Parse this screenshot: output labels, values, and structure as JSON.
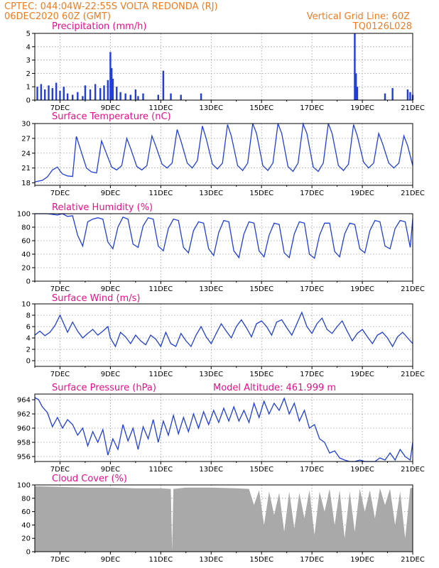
{
  "header": {
    "line1": "CPTEC:   044:04W-22:55S   VOLTA REDONDA (RJ)",
    "line2": "06DEC2020 60Z (GMT)",
    "grid_note": "Vertical Grid Line: 60Z",
    "code": "TQ0126L028"
  },
  "colors": {
    "header": "#f07c22",
    "title": "#e8108a",
    "series": "#1f3fd8",
    "cloud": "#a9a9a9"
  },
  "chart_data": [
    {
      "type": "bar",
      "title": "Precipitation (mm/h)",
      "ylim": [
        0,
        5
      ],
      "yticks": [
        0,
        1,
        2,
        3,
        4,
        5
      ],
      "xlabels": [
        "7DEC",
        "9DEC",
        "11DEC",
        "13DEC",
        "15DEC",
        "17DEC",
        "19DEC",
        "21DEC"
      ],
      "grid": true,
      "x": [
        6.1,
        6.25,
        6.4,
        6.55,
        6.7,
        6.85,
        7.0,
        7.15,
        7.3,
        7.5,
        7.7,
        7.9,
        8.0,
        8.2,
        8.4,
        8.6,
        8.75,
        8.9,
        9.0,
        9.05,
        9.1,
        9.25,
        9.4,
        9.6,
        9.8,
        10.0,
        10.1,
        10.3,
        10.9,
        11.1,
        11.4,
        11.8,
        12.6,
        18.7,
        18.75,
        18.8,
        19.9,
        20.2,
        20.8,
        20.9,
        21.0
      ],
      "values": [
        1.0,
        1.2,
        0.8,
        1.1,
        0.9,
        1.3,
        0.7,
        1.0,
        0.5,
        0.4,
        0.6,
        0.3,
        1.1,
        0.8,
        1.2,
        0.9,
        1.1,
        1.5,
        3.6,
        2.4,
        1.6,
        1.0,
        0.6,
        0.5,
        0.4,
        0.8,
        0.3,
        0.5,
        0.4,
        2.2,
        0.5,
        0.4,
        0.5,
        5.0,
        2.0,
        1.0,
        0.5,
        0.9,
        0.8,
        0.6,
        0.4
      ]
    },
    {
      "type": "line",
      "title": "Surface Temperature (nC)",
      "ylim": [
        17.5,
        30
      ],
      "yticks": [
        18,
        21,
        24,
        27,
        30
      ],
      "xlabels": [
        "7DEC",
        "9DEC",
        "11DEC",
        "13DEC",
        "15DEC",
        "17DEC",
        "19DEC",
        "21DEC"
      ],
      "grid": true,
      "x": [
        6.0,
        6.3,
        6.5,
        6.7,
        6.9,
        7.0,
        7.1,
        7.3,
        7.5,
        7.65,
        7.8,
        8.05,
        8.25,
        8.45,
        8.65,
        8.8,
        9.05,
        9.25,
        9.45,
        9.65,
        9.8,
        10.05,
        10.25,
        10.45,
        10.65,
        10.8,
        11.05,
        11.25,
        11.45,
        11.65,
        11.8,
        12.05,
        12.25,
        12.45,
        12.65,
        12.8,
        13.05,
        13.25,
        13.45,
        13.65,
        13.8,
        14.05,
        14.25,
        14.45,
        14.65,
        14.8,
        15.05,
        15.25,
        15.45,
        15.65,
        15.8,
        16.05,
        16.25,
        16.45,
        16.65,
        16.8,
        17.05,
        17.25,
        17.45,
        17.65,
        17.8,
        18.05,
        18.25,
        18.45,
        18.65,
        18.8,
        19.05,
        19.25,
        19.45,
        19.65,
        19.8,
        20.05,
        20.25,
        20.45,
        20.65,
        20.8,
        21.0
      ],
      "values": [
        18.2,
        18.5,
        19.2,
        20.6,
        21.2,
        20.4,
        19.8,
        19.4,
        19.3,
        27.4,
        25.0,
        21.0,
        20.2,
        20.0,
        26.5,
        24.5,
        21.2,
        20.6,
        21.5,
        27.0,
        25.0,
        21.3,
        20.6,
        21.5,
        27.5,
        25.5,
        21.8,
        21.0,
        22.0,
        28.8,
        26.5,
        22.0,
        21.0,
        22.5,
        29.5,
        27.0,
        21.8,
        20.8,
        22.0,
        29.8,
        27.5,
        21.5,
        20.5,
        22.0,
        30.0,
        28.0,
        21.5,
        20.5,
        22.0,
        30.0,
        28.0,
        21.3,
        20.3,
        22.0,
        29.9,
        28.0,
        21.2,
        20.3,
        22.0,
        30.0,
        28.0,
        21.5,
        20.5,
        21.8,
        29.8,
        27.5,
        22.2,
        21.0,
        22.0,
        28.0,
        26.0,
        22.0,
        21.0,
        22.0,
        27.5,
        25.5,
        21.5
      ]
    },
    {
      "type": "line",
      "title": "Relative Humidity (%)",
      "ylim": [
        0,
        100
      ],
      "yticks": [
        0,
        20,
        40,
        60,
        80,
        100
      ],
      "xlabels": [
        "7DEC",
        "9DEC",
        "11DEC",
        "13DEC",
        "15DEC",
        "17DEC",
        "19DEC",
        "21DEC"
      ],
      "grid": true,
      "x": [
        6.0,
        6.5,
        6.9,
        7.1,
        7.3,
        7.5,
        7.7,
        7.9,
        8.1,
        8.3,
        8.5,
        8.7,
        8.9,
        9.1,
        9.3,
        9.5,
        9.7,
        9.9,
        10.1,
        10.3,
        10.5,
        10.7,
        10.9,
        11.1,
        11.3,
        11.5,
        11.7,
        11.9,
        12.1,
        12.3,
        12.5,
        12.7,
        12.9,
        13.1,
        13.3,
        13.5,
        13.7,
        13.9,
        14.1,
        14.3,
        14.5,
        14.7,
        14.9,
        15.1,
        15.3,
        15.5,
        15.7,
        15.9,
        16.1,
        16.3,
        16.5,
        16.7,
        16.9,
        17.1,
        17.3,
        17.5,
        17.7,
        17.9,
        18.1,
        18.3,
        18.5,
        18.7,
        18.9,
        19.1,
        19.3,
        19.5,
        19.7,
        19.9,
        20.1,
        20.3,
        20.5,
        20.7,
        20.9,
        21.0
      ],
      "values": [
        100,
        100,
        98,
        100,
        96,
        97,
        68,
        52,
        88,
        92,
        94,
        92,
        58,
        48,
        80,
        95,
        92,
        55,
        50,
        82,
        94,
        92,
        52,
        45,
        78,
        92,
        90,
        50,
        42,
        75,
        88,
        86,
        48,
        38,
        72,
        90,
        88,
        45,
        35,
        70,
        88,
        86,
        45,
        36,
        68,
        86,
        84,
        42,
        35,
        70,
        88,
        86,
        40,
        34,
        68,
        86,
        86,
        44,
        36,
        70,
        86,
        84,
        48,
        42,
        75,
        90,
        88,
        52,
        48,
        78,
        90,
        88,
        50,
        92
      ]
    },
    {
      "type": "line",
      "title": "Surface Wind (m/s)",
      "ylim": [
        -1,
        10
      ],
      "yticks": [
        0,
        2,
        4,
        6,
        8,
        10
      ],
      "xlabels": [
        "7DEC",
        "9DEC",
        "11DEC",
        "13DEC",
        "15DEC",
        "17DEC",
        "19DEC",
        "21DEC"
      ],
      "grid": true,
      "x": [
        6.0,
        6.2,
        6.4,
        6.6,
        6.8,
        7.0,
        7.15,
        7.3,
        7.5,
        7.7,
        7.9,
        8.1,
        8.3,
        8.5,
        8.7,
        8.9,
        9.0,
        9.2,
        9.4,
        9.6,
        9.8,
        10.0,
        10.2,
        10.4,
        10.6,
        10.8,
        11.0,
        11.2,
        11.4,
        11.6,
        11.8,
        12.0,
        12.2,
        12.4,
        12.6,
        12.8,
        13.0,
        13.2,
        13.4,
        13.6,
        13.8,
        14.0,
        14.2,
        14.4,
        14.6,
        14.8,
        15.0,
        15.2,
        15.4,
        15.6,
        15.8,
        16.0,
        16.2,
        16.4,
        16.6,
        16.8,
        17.0,
        17.2,
        17.4,
        17.6,
        17.8,
        18.0,
        18.2,
        18.4,
        18.6,
        18.8,
        19.0,
        19.2,
        19.4,
        19.6,
        19.8,
        20.0,
        20.2,
        20.4,
        20.6,
        20.8,
        21.0
      ],
      "values": [
        4.5,
        5.2,
        4.4,
        5.0,
        6.2,
        8.0,
        6.5,
        5.0,
        6.8,
        5.2,
        4.0,
        4.8,
        5.5,
        4.5,
        5.2,
        6.0,
        4.0,
        2.5,
        5.0,
        4.2,
        3.0,
        4.5,
        3.5,
        2.8,
        4.5,
        3.8,
        2.5,
        5.0,
        3.0,
        2.5,
        4.8,
        3.5,
        2.5,
        4.5,
        6.0,
        4.2,
        3.0,
        4.8,
        6.5,
        5.2,
        4.0,
        6.0,
        7.2,
        5.8,
        4.2,
        6.5,
        7.0,
        6.0,
        4.5,
        6.8,
        7.2,
        5.8,
        4.5,
        6.5,
        8.5,
        6.0,
        4.8,
        6.5,
        7.5,
        5.5,
        4.8,
        6.0,
        7.0,
        5.2,
        3.5,
        4.8,
        5.5,
        4.2,
        3.0,
        4.5,
        5.0,
        4.0,
        2.5,
        4.2,
        5.0,
        4.0,
        3.0
      ]
    },
    {
      "type": "line",
      "title": "Surface Pressure (hPa)",
      "annotation": "Model Altitude: 461.999 m",
      "ylim": [
        955.3,
        964.8
      ],
      "yticks": [
        956,
        958,
        960,
        962,
        964
      ],
      "xlabels": [
        "7DEC",
        "9DEC",
        "11DEC",
        "13DEC",
        "15DEC",
        "17DEC",
        "19DEC",
        "21DEC"
      ],
      "grid": true,
      "x": [
        6.0,
        6.15,
        6.3,
        6.5,
        6.7,
        6.9,
        7.1,
        7.3,
        7.5,
        7.7,
        7.9,
        8.1,
        8.3,
        8.5,
        8.7,
        8.9,
        9.1,
        9.3,
        9.5,
        9.7,
        9.9,
        10.1,
        10.3,
        10.5,
        10.7,
        10.9,
        11.1,
        11.3,
        11.5,
        11.7,
        11.9,
        12.1,
        12.3,
        12.5,
        12.7,
        12.9,
        13.1,
        13.3,
        13.5,
        13.7,
        13.9,
        14.1,
        14.3,
        14.5,
        14.7,
        14.9,
        15.1,
        15.3,
        15.5,
        15.7,
        15.9,
        16.1,
        16.3,
        16.5,
        16.7,
        16.9,
        17.1,
        17.3,
        17.5,
        17.7,
        17.9,
        18.1,
        18.3,
        18.5,
        18.7,
        18.9,
        19.1,
        19.3,
        19.5,
        19.7,
        19.9,
        20.1,
        20.3,
        20.5,
        20.7,
        20.9,
        21.0
      ],
      "values": [
        964.3,
        964.0,
        963.0,
        962.2,
        960.2,
        961.5,
        960.0,
        961.2,
        960.5,
        959.0,
        960.0,
        957.5,
        959.5,
        958.0,
        959.8,
        956.2,
        958.5,
        957.0,
        960.5,
        958.2,
        960.0,
        957.0,
        960.2,
        958.5,
        961.2,
        958.0,
        961.0,
        959.0,
        961.8,
        959.2,
        961.5,
        959.5,
        962.0,
        960.0,
        962.3,
        960.5,
        962.5,
        960.8,
        962.8,
        961.0,
        963.0,
        961.0,
        962.5,
        960.8,
        963.5,
        961.5,
        963.8,
        962.0,
        963.5,
        962.5,
        964.2,
        962.0,
        963.5,
        961.0,
        962.5,
        960.0,
        960.5,
        958.5,
        958.0,
        956.5,
        956.8,
        955.8,
        955.5,
        955.3,
        955.3,
        955.5,
        955.3,
        955.3,
        955.3,
        955.8,
        955.5,
        956.5,
        955.5,
        957.0,
        956.0,
        955.5,
        958.0
      ]
    },
    {
      "type": "area",
      "title": "Cloud Cover (%)",
      "ylim": [
        0,
        100
      ],
      "yticks": [
        0,
        20,
        40,
        60,
        80,
        100
      ],
      "xlabels": [
        "7DEC",
        "9DEC",
        "11DEC",
        "13DEC",
        "15DEC",
        "17DEC",
        "19DEC",
        "21DEC"
      ],
      "grid": true,
      "x": [
        6.0,
        7.0,
        8.0,
        9.0,
        10.0,
        11.0,
        11.4,
        11.45,
        11.5,
        12.0,
        13.0,
        14.0,
        14.5,
        14.7,
        14.9,
        15.1,
        15.3,
        15.5,
        15.7,
        15.9,
        16.1,
        16.3,
        16.5,
        16.7,
        16.9,
        17.1,
        17.3,
        17.5,
        17.7,
        17.9,
        18.1,
        18.3,
        18.5,
        18.7,
        18.9,
        19.1,
        19.3,
        19.5,
        19.7,
        19.9,
        20.1,
        20.3,
        20.5,
        20.7,
        20.9,
        21.0
      ],
      "values": [
        98,
        97,
        96,
        96,
        95,
        95,
        94,
        2,
        94,
        96,
        96,
        95,
        94,
        70,
        92,
        40,
        90,
        55,
        88,
        30,
        90,
        35,
        88,
        50,
        92,
        25,
        90,
        60,
        94,
        40,
        92,
        20,
        90,
        30,
        94,
        60,
        92,
        50,
        95,
        70,
        94,
        40,
        90,
        20,
        95,
        96
      ]
    }
  ]
}
